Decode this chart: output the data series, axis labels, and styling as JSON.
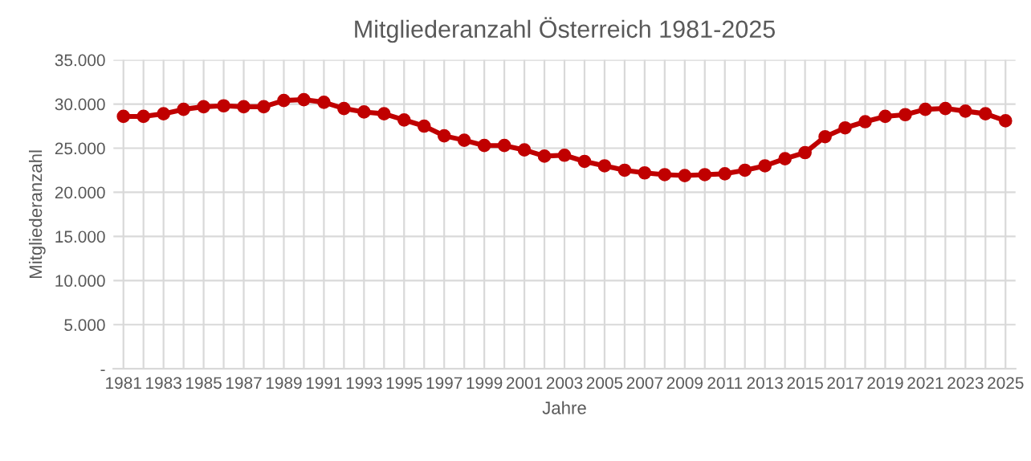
{
  "chart_data": {
    "type": "line",
    "title": "Mitgliederanzahl Österreich 1981-2025",
    "xlabel": "Jahre",
    "ylabel": "Mitgliederanzahl",
    "categories": [
      "1981",
      null,
      "1983",
      null,
      "1985",
      null,
      "1987",
      null,
      "1989",
      null,
      "1991",
      null,
      "1993",
      null,
      "1995",
      null,
      "1997",
      null,
      "1999",
      null,
      "2001",
      null,
      "2003",
      null,
      "2005",
      null,
      "2007",
      null,
      "2009",
      null,
      "2011",
      null,
      "2013",
      null,
      "2015",
      null,
      "2017",
      null,
      "2019",
      null,
      "2021",
      null,
      "2023",
      null,
      "2025"
    ],
    "series": [
      {
        "color": "#c00000",
        "values": [
          28600,
          28600,
          28900,
          29400,
          29700,
          29800,
          29700,
          29700,
          30400,
          30500,
          30200,
          29500,
          29100,
          28900,
          28200,
          27500,
          26400,
          25900,
          25300,
          25300,
          24800,
          24100,
          24200,
          23500,
          23000,
          22500,
          22200,
          22000,
          21900,
          22000,
          22100,
          22500,
          23000,
          23800,
          24500,
          26300,
          27300,
          28000,
          28600,
          28800,
          29400,
          29500,
          29200,
          28900,
          28100
        ]
      }
    ],
    "ylim": [
      0,
      35000
    ],
    "yticks": [
      {
        "value": 0,
        "label": "-"
      },
      {
        "value": 5000,
        "label": "5.000"
      },
      {
        "value": 10000,
        "label": "10.000"
      },
      {
        "value": 15000,
        "label": "15.000"
      },
      {
        "value": 20000,
        "label": "20.000"
      },
      {
        "value": 25000,
        "label": "25.000"
      },
      {
        "value": 30000,
        "label": "30.000"
      },
      {
        "value": 35000,
        "label": "35.000"
      }
    ],
    "grid": true,
    "marker": "circle",
    "line_style": "solid"
  }
}
